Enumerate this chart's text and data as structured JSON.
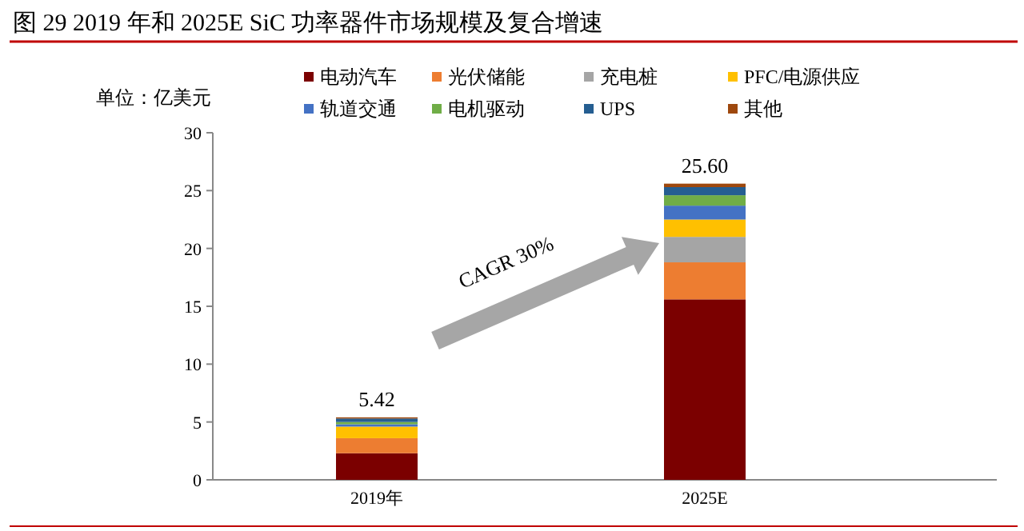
{
  "chart_data": {
    "type": "bar",
    "stacked": true,
    "title": "图 29 2019 年和 2025E SiC 功率器件市场规模及复合增速",
    "ylabel": "单位：亿美元",
    "categories": [
      "2019年",
      "2025E"
    ],
    "series": [
      {
        "name": "电动汽车",
        "color": "#7b0000",
        "values": [
          2.3,
          15.6
        ]
      },
      {
        "name": "光伏储能",
        "color": "#ed7d31",
        "values": [
          1.3,
          3.2
        ]
      },
      {
        "name": "充电桩",
        "color": "#a5a5a5",
        "values": [
          null,
          2.2
        ]
      },
      {
        "name": "PFC/电源供应",
        "color": "#ffc000",
        "values": [
          1.0,
          1.5
        ]
      },
      {
        "name": "轨道交通",
        "color": "#4472c4",
        "values": [
          0.2,
          1.2
        ]
      },
      {
        "name": "电机驱动",
        "color": "#70ad47",
        "values": [
          0.2,
          0.9
        ]
      },
      {
        "name": "UPS",
        "color": "#255e91",
        "values": [
          0.3,
          0.7
        ]
      },
      {
        "name": "其他",
        "color": "#9e480e",
        "values": [
          0.1,
          0.3
        ]
      }
    ],
    "totals": [
      "5.42",
      "25.60"
    ],
    "ylim": [
      0,
      30
    ],
    "yticks": [
      0,
      5,
      10,
      15,
      20,
      25,
      30
    ],
    "legend": "top",
    "grid": false,
    "annotations": [
      "CAGR 30%"
    ]
  }
}
